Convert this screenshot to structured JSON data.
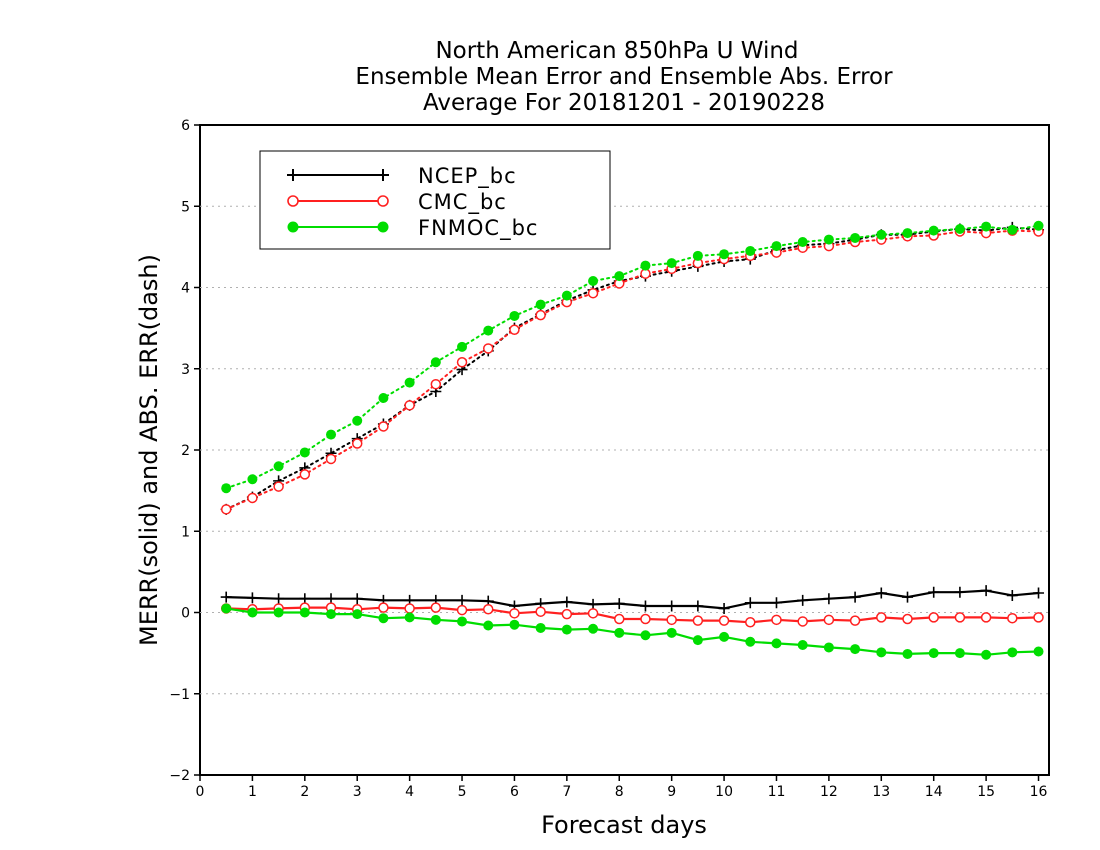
{
  "chart_data": {
    "type": "line",
    "title": [
      "North American 850hPa U Wind",
      "Ensemble Mean Error and Ensemble Abs. Error",
      "Average For 20181201 - 20190228"
    ],
    "xlabel": "Forecast days",
    "ylabel": "MERR(solid) and ABS. ERR(dash)",
    "xlim": [
      0,
      16.2
    ],
    "ylim": [
      -2,
      6
    ],
    "xticks": [
      0,
      1,
      2,
      3,
      4,
      5,
      6,
      7,
      8,
      9,
      10,
      11,
      12,
      13,
      14,
      15,
      16
    ],
    "yticks": [
      -2,
      -1,
      0,
      1,
      2,
      3,
      4,
      5,
      6
    ],
    "ytick_labels": [
      "−2",
      "−1",
      "0",
      "1",
      "2",
      "3",
      "4",
      "5",
      "6"
    ],
    "grid": true,
    "legend_position": "top-left",
    "x": [
      0.5,
      1,
      1.5,
      2,
      2.5,
      3,
      3.5,
      4,
      4.5,
      5,
      5.5,
      6,
      6.5,
      7,
      7.5,
      8,
      8.5,
      9,
      9.5,
      10,
      10.5,
      11,
      11.5,
      12,
      12.5,
      13,
      13.5,
      14,
      14.5,
      15,
      15.5,
      16
    ],
    "series": [
      {
        "name": "NCEP_bc",
        "color": "#000000",
        "marker": "plus",
        "merr": [
          0.19,
          0.18,
          0.17,
          0.17,
          0.17,
          0.17,
          0.15,
          0.15,
          0.15,
          0.15,
          0.14,
          0.08,
          0.11,
          0.13,
          0.1,
          0.11,
          0.08,
          0.08,
          0.08,
          0.05,
          0.12,
          0.12,
          0.15,
          0.17,
          0.19,
          0.24,
          0.19,
          0.25,
          0.25,
          0.27,
          0.21,
          0.24
        ],
        "abs_err": [
          1.27,
          1.42,
          1.62,
          1.78,
          1.96,
          2.14,
          2.32,
          2.55,
          2.72,
          2.99,
          3.22,
          3.5,
          3.67,
          3.84,
          3.97,
          4.08,
          4.14,
          4.2,
          4.26,
          4.32,
          4.35,
          4.46,
          4.52,
          4.54,
          4.59,
          4.65,
          4.65,
          4.69,
          4.72,
          4.7,
          4.74,
          4.71
        ]
      },
      {
        "name": "CMC_bc",
        "color": "#ff2020",
        "marker": "open-circle",
        "merr": [
          0.05,
          0.04,
          0.05,
          0.06,
          0.06,
          0.04,
          0.06,
          0.05,
          0.06,
          0.03,
          0.04,
          -0.01,
          0.01,
          -0.02,
          -0.01,
          -0.08,
          -0.08,
          -0.09,
          -0.1,
          -0.1,
          -0.12,
          -0.09,
          -0.11,
          -0.09,
          -0.1,
          -0.06,
          -0.08,
          -0.06,
          -0.06,
          -0.06,
          -0.07,
          -0.06
        ],
        "abs_err": [
          1.27,
          1.41,
          1.55,
          1.7,
          1.89,
          2.08,
          2.29,
          2.55,
          2.81,
          3.08,
          3.25,
          3.48,
          3.66,
          3.82,
          3.93,
          4.05,
          4.17,
          4.23,
          4.3,
          4.35,
          4.39,
          4.43,
          4.49,
          4.51,
          4.56,
          4.59,
          4.63,
          4.64,
          4.69,
          4.67,
          4.7,
          4.69
        ]
      },
      {
        "name": "FNMOC_bc",
        "color": "#00dd00",
        "marker": "filled-circle",
        "merr": [
          0.05,
          0.0,
          0.0,
          0.0,
          -0.02,
          -0.02,
          -0.07,
          -0.06,
          -0.09,
          -0.11,
          -0.16,
          -0.15,
          -0.19,
          -0.21,
          -0.2,
          -0.25,
          -0.28,
          -0.25,
          -0.34,
          -0.3,
          -0.36,
          -0.38,
          -0.4,
          -0.43,
          -0.45,
          -0.49,
          -0.51,
          -0.5,
          -0.5,
          -0.52,
          -0.49,
          -0.48
        ],
        "abs_err": [
          1.53,
          1.64,
          1.8,
          1.97,
          2.19,
          2.36,
          2.64,
          2.83,
          3.08,
          3.27,
          3.47,
          3.65,
          3.79,
          3.9,
          4.08,
          4.14,
          4.27,
          4.3,
          4.39,
          4.41,
          4.45,
          4.51,
          4.56,
          4.59,
          4.61,
          4.65,
          4.67,
          4.7,
          4.72,
          4.75,
          4.71,
          4.76
        ]
      }
    ]
  }
}
